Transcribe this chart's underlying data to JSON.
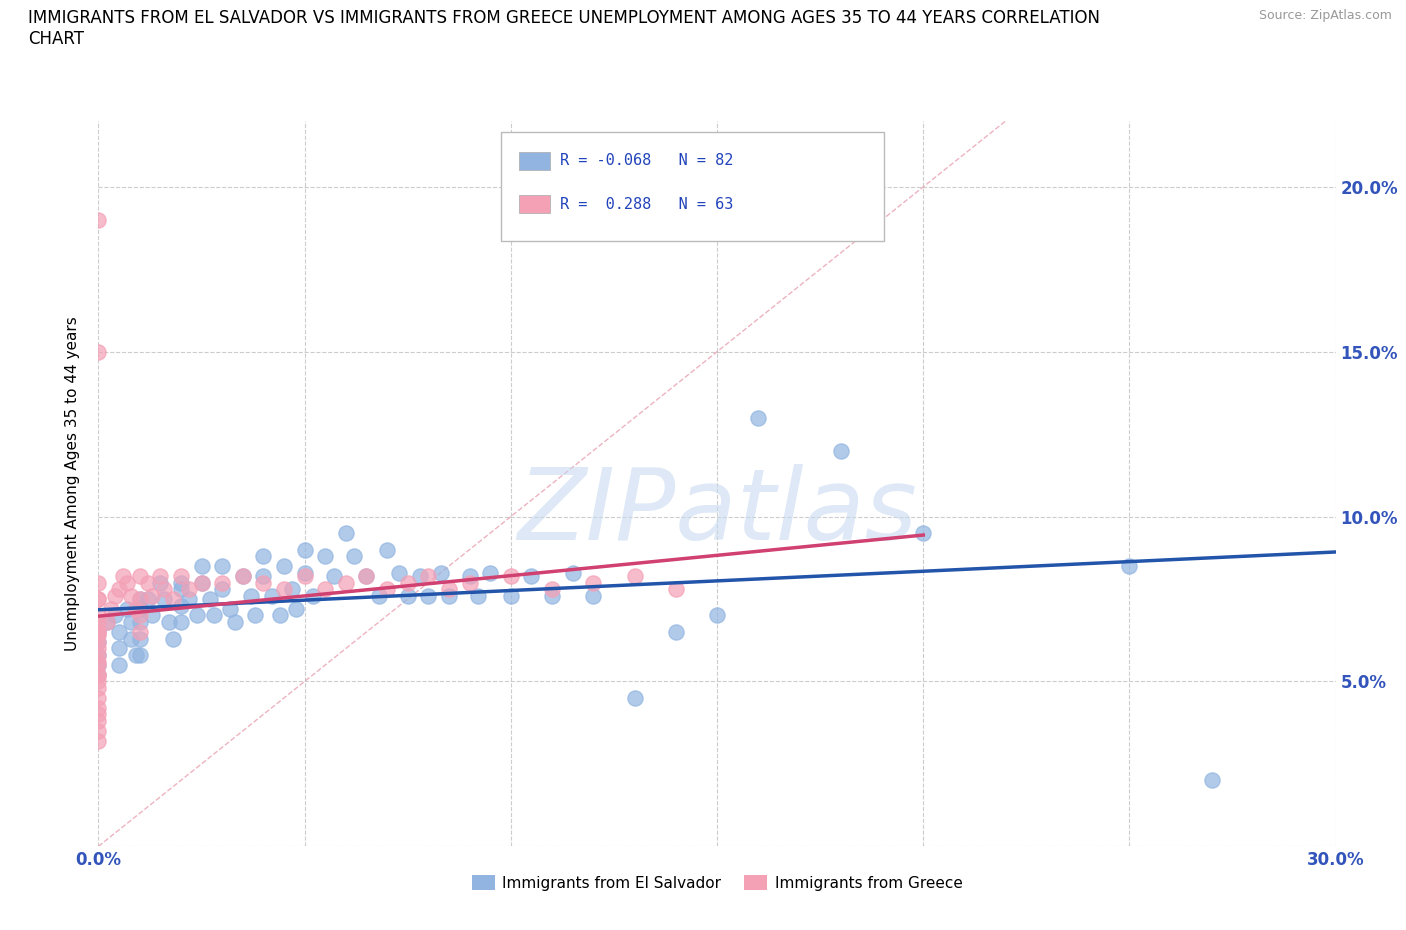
{
  "title": "IMMIGRANTS FROM EL SALVADOR VS IMMIGRANTS FROM GREECE UNEMPLOYMENT AMONG AGES 35 TO 44 YEARS CORRELATION\nCHART",
  "source_text": "Source: ZipAtlas.com",
  "ylabel": "Unemployment Among Ages 35 to 44 years",
  "xlim": [
    0.0,
    0.3
  ],
  "ylim": [
    0.0,
    0.22
  ],
  "el_salvador_color": "#91B4E0",
  "greece_color": "#F4A0B5",
  "el_salvador_line_color": "#2255AA",
  "greece_line_color": "#D04070",
  "ref_line_color": "#E8A0B0",
  "watermark": "ZIPatlas",
  "el_salvador_x": [
    0.0,
    0.0,
    0.0,
    0.0,
    0.0,
    0.002,
    0.004,
    0.005,
    0.005,
    0.005,
    0.007,
    0.008,
    0.008,
    0.009,
    0.01,
    0.01,
    0.01,
    0.01,
    0.01,
    0.01,
    0.012,
    0.013,
    0.015,
    0.016,
    0.017,
    0.018,
    0.02,
    0.02,
    0.02,
    0.02,
    0.022,
    0.024,
    0.025,
    0.025,
    0.027,
    0.028,
    0.03,
    0.03,
    0.032,
    0.033,
    0.035,
    0.037,
    0.038,
    0.04,
    0.04,
    0.042,
    0.044,
    0.045,
    0.047,
    0.048,
    0.05,
    0.05,
    0.052,
    0.055,
    0.057,
    0.06,
    0.062,
    0.065,
    0.068,
    0.07,
    0.073,
    0.075,
    0.078,
    0.08,
    0.083,
    0.085,
    0.09,
    0.092,
    0.095,
    0.1,
    0.105,
    0.11,
    0.115,
    0.12,
    0.13,
    0.14,
    0.15,
    0.16,
    0.18,
    0.2,
    0.25,
    0.27
  ],
  "el_salvador_y": [
    0.065,
    0.062,
    0.058,
    0.055,
    0.052,
    0.068,
    0.07,
    0.065,
    0.06,
    0.055,
    0.072,
    0.068,
    0.063,
    0.058,
    0.075,
    0.072,
    0.068,
    0.063,
    0.058,
    0.072,
    0.075,
    0.07,
    0.08,
    0.075,
    0.068,
    0.063,
    0.078,
    0.073,
    0.068,
    0.08,
    0.075,
    0.07,
    0.085,
    0.08,
    0.075,
    0.07,
    0.085,
    0.078,
    0.072,
    0.068,
    0.082,
    0.076,
    0.07,
    0.088,
    0.082,
    0.076,
    0.07,
    0.085,
    0.078,
    0.072,
    0.09,
    0.083,
    0.076,
    0.088,
    0.082,
    0.095,
    0.088,
    0.082,
    0.076,
    0.09,
    0.083,
    0.076,
    0.082,
    0.076,
    0.083,
    0.076,
    0.082,
    0.076,
    0.083,
    0.076,
    0.082,
    0.076,
    0.083,
    0.076,
    0.045,
    0.065,
    0.07,
    0.13,
    0.12,
    0.095,
    0.085,
    0.02
  ],
  "greece_x": [
    0.0,
    0.0,
    0.0,
    0.0,
    0.0,
    0.0,
    0.0,
    0.0,
    0.0,
    0.0,
    0.0,
    0.0,
    0.0,
    0.0,
    0.0,
    0.0,
    0.0,
    0.0,
    0.0,
    0.0,
    0.0,
    0.0,
    0.0,
    0.0,
    0.0,
    0.002,
    0.003,
    0.004,
    0.005,
    0.006,
    0.007,
    0.008,
    0.009,
    0.01,
    0.01,
    0.01,
    0.01,
    0.012,
    0.013,
    0.015,
    0.016,
    0.018,
    0.02,
    0.022,
    0.025,
    0.03,
    0.035,
    0.04,
    0.045,
    0.05,
    0.055,
    0.06,
    0.065,
    0.07,
    0.075,
    0.08,
    0.085,
    0.09,
    0.1,
    0.11,
    0.12,
    0.13,
    0.14
  ],
  "greece_y": [
    0.065,
    0.062,
    0.058,
    0.055,
    0.052,
    0.05,
    0.048,
    0.045,
    0.042,
    0.04,
    0.038,
    0.035,
    0.032,
    0.068,
    0.064,
    0.06,
    0.056,
    0.052,
    0.075,
    0.08,
    0.075,
    0.07,
    0.19,
    0.15,
    0.065,
    0.068,
    0.072,
    0.076,
    0.078,
    0.082,
    0.08,
    0.076,
    0.072,
    0.075,
    0.07,
    0.065,
    0.082,
    0.08,
    0.076,
    0.082,
    0.078,
    0.075,
    0.082,
    0.078,
    0.08,
    0.08,
    0.082,
    0.08,
    0.078,
    0.082,
    0.078,
    0.08,
    0.082,
    0.078,
    0.08,
    0.082,
    0.078,
    0.08,
    0.082,
    0.078,
    0.08,
    0.082,
    0.078
  ]
}
